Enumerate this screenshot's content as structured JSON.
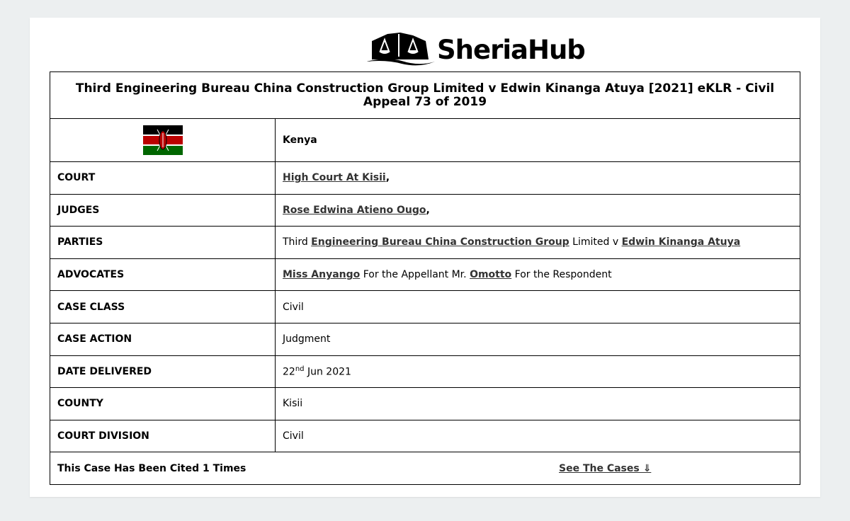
{
  "brand": {
    "name": "SheriaHub",
    "logo_icon": "scales-of-justice-house-icon"
  },
  "case_title": "Third Engineering Bureau China Construction Group Limited v Edwin Kinanga Atuya [2021] eKLR - Civil Appeal 73 of 2019",
  "country": {
    "name": "Kenya",
    "flag_icon": "kenya-flag-icon",
    "flag_colors": [
      "#000000",
      "#bb0000",
      "#006600",
      "#ffffff"
    ]
  },
  "rows": {
    "court": {
      "label": "COURT",
      "link": "High Court At Kisii",
      "suffix": ","
    },
    "judges": {
      "label": "JUDGES",
      "link": "Rose Edwina Atieno Ougo",
      "suffix": ","
    },
    "parties": {
      "label": "PARTIES",
      "t1": "Third ",
      "link1": "Engineering Bureau China Construction Group",
      "t2": " Limited v ",
      "link2": "Edwin Kinanga Atuya"
    },
    "advocates": {
      "label": "ADVOCATES",
      "link1": "Miss Anyango",
      "t1": " For the Appellant Mr. ",
      "link2": "Omotto",
      "t2": " For the Respondent"
    },
    "case_class": {
      "label": "CASE CLASS",
      "value": "Civil"
    },
    "case_action": {
      "label": "CASE ACTION",
      "value": "Judgment"
    },
    "date_delivered": {
      "label": "DATE DELIVERED",
      "day": "22",
      "suffix": "nd",
      "rest": " Jun 2021"
    },
    "county": {
      "label": "COUNTY",
      "value": "Kisii"
    },
    "court_division": {
      "label": "COURT DIVISION",
      "value": "Civil"
    }
  },
  "citations": {
    "text": "This Case Has Been Cited 1 Times",
    "link": "See The Cases ⇓"
  }
}
